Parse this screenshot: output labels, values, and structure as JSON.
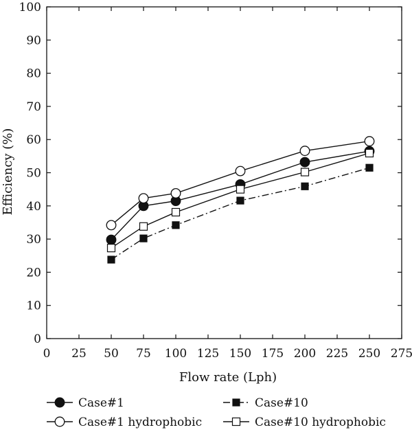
{
  "chart_data": {
    "type": "line",
    "title": "",
    "xlabel": "Flow rate (Lph)",
    "ylabel": "Efficiency (%)",
    "xlim": [
      0,
      275
    ],
    "ylim": [
      0,
      100
    ],
    "xticks": [
      0,
      25,
      50,
      75,
      100,
      125,
      150,
      175,
      200,
      225,
      250,
      275
    ],
    "yticks": [
      0,
      10,
      20,
      30,
      40,
      50,
      60,
      70,
      80,
      90,
      100
    ],
    "grid": false,
    "legend_position": "bottom",
    "x": [
      50,
      75,
      100,
      150,
      200,
      250
    ],
    "series": [
      {
        "name": "Case#1",
        "values": [
          29.8,
          40.0,
          41.5,
          46.5,
          53.2,
          56.5
        ],
        "marker": "filled-circle",
        "line": "solid"
      },
      {
        "name": "Case#10",
        "values": [
          23.8,
          30.2,
          34.2,
          41.6,
          45.9,
          51.5
        ],
        "marker": "filled-square",
        "line": "dash-dot"
      },
      {
        "name": "Case#1 hydrophobic",
        "values": [
          34.2,
          42.3,
          43.8,
          50.5,
          56.6,
          59.5
        ],
        "marker": "open-circle",
        "line": "solid"
      },
      {
        "name": "Case#10 hydrophobic",
        "values": [
          27.3,
          33.8,
          38.1,
          45.0,
          50.2,
          55.9
        ],
        "marker": "open-square",
        "line": "solid"
      }
    ]
  },
  "colors": {
    "ink": "#111111",
    "background": "#ffffff"
  }
}
